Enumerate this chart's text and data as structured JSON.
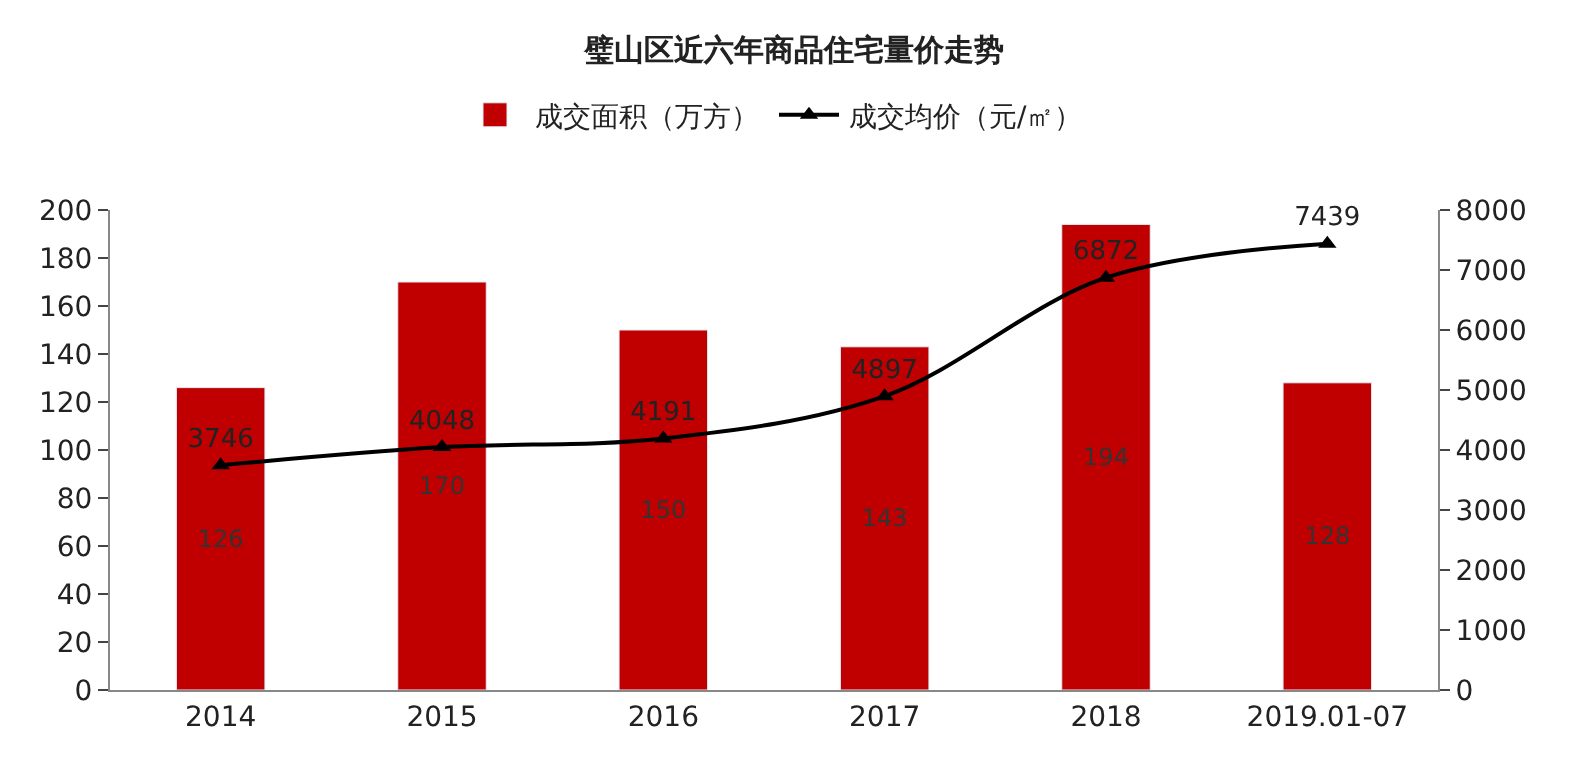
{
  "chart_data": {
    "type": "bar",
    "title": "璧山区近六年商品住宅量价走势",
    "categories": [
      "2014",
      "2015",
      "2016",
      "2017",
      "2018",
      "2019.01-07"
    ],
    "series": [
      {
        "name": "成交面积（万方）",
        "color": "#c00000",
        "values": [
          126,
          170,
          150,
          143,
          194,
          128
        ]
      },
      {
        "name": "成交均价（元/㎡）",
        "type": "line",
        "axis": "y2",
        "color": "#000000",
        "marker": "triangle",
        "line_style": "solid",
        "values": [
          3746,
          4048,
          4191,
          4897,
          6872,
          7439
        ]
      }
    ],
    "ylim": [
      0,
      200
    ],
    "yticks": [
      0,
      20,
      40,
      60,
      80,
      100,
      120,
      140,
      160,
      180,
      200
    ],
    "y2lim": [
      0,
      8000
    ],
    "y2ticks": [
      0,
      1000,
      2000,
      3000,
      4000,
      5000,
      6000,
      7000,
      8000
    ],
    "data_labels": true,
    "legend": "top"
  }
}
